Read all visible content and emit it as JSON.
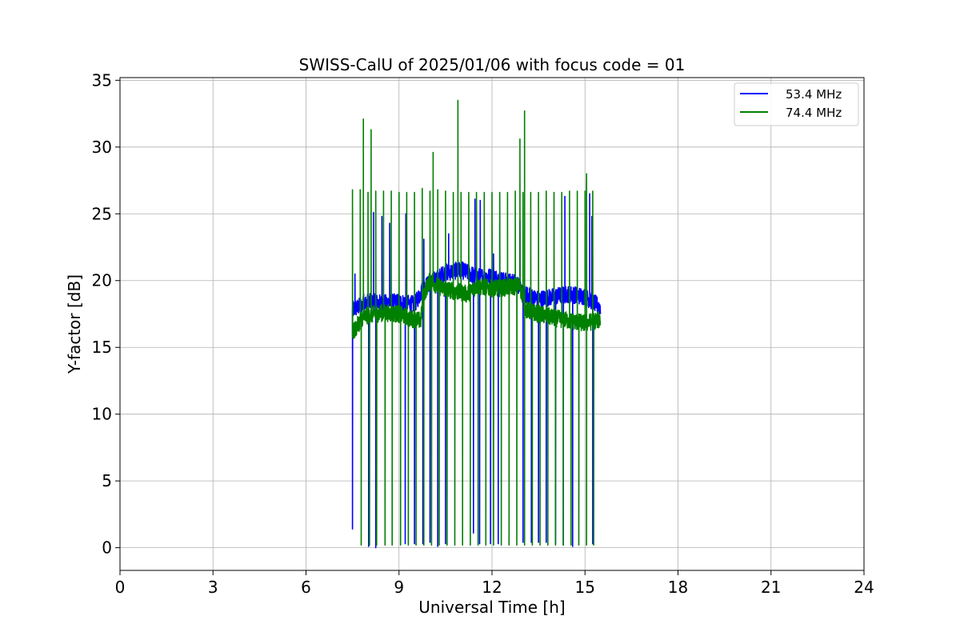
{
  "chart_data": {
    "type": "line",
    "title": "SWISS-CalU of 2025/01/06 with focus code = 01",
    "xlabel": "Universal Time [h]",
    "ylabel": "Y-factor [dB]",
    "xlim": [
      0,
      24
    ],
    "ylim": [
      -1.7,
      35.2
    ],
    "xticks": [
      0,
      3,
      6,
      9,
      12,
      15,
      18,
      21,
      24
    ],
    "yticks": [
      0,
      5,
      10,
      15,
      20,
      25,
      30,
      35
    ],
    "grid": true,
    "legend": "top-right",
    "series": [
      {
        "name": "53.4 MHz",
        "color": "#0000ff",
        "t_start": 7.5,
        "t_end": 15.5,
        "baseline": [
          [
            7.5,
            17.8
          ],
          [
            8.0,
            18.4
          ],
          [
            8.5,
            18.3
          ],
          [
            9.0,
            18.4
          ],
          [
            9.5,
            18.2
          ],
          [
            9.8,
            19.5
          ],
          [
            10.5,
            20.6
          ],
          [
            11.0,
            20.8
          ],
          [
            11.5,
            20.3
          ],
          [
            12.0,
            20.3
          ],
          [
            12.5,
            19.9
          ],
          [
            12.8,
            19.9
          ],
          [
            13.0,
            19.0
          ],
          [
            13.5,
            18.6
          ],
          [
            14.0,
            18.8
          ],
          [
            14.5,
            19.0
          ],
          [
            15.0,
            18.8
          ],
          [
            15.5,
            18.0
          ]
        ],
        "spikes": [
          [
            7.5,
            1.4
          ],
          [
            7.58,
            20.5
          ],
          [
            7.72,
            18.5
          ],
          [
            7.86,
            19.0
          ],
          [
            8.02,
            0.1
          ],
          [
            8.18,
            25.1
          ],
          [
            8.25,
            0.0
          ],
          [
            8.45,
            24.8
          ],
          [
            8.7,
            24.3
          ],
          [
            9.2,
            0.3
          ],
          [
            9.22,
            25.0
          ],
          [
            9.5,
            0.3
          ],
          [
            9.77,
            0.3
          ],
          [
            9.8,
            23.1
          ],
          [
            10.0,
            0.4
          ],
          [
            10.25,
            0.1
          ],
          [
            10.5,
            0.3
          ],
          [
            10.6,
            23.5
          ],
          [
            10.9,
            21.5
          ],
          [
            11.4,
            1.1
          ],
          [
            11.45,
            26.1
          ],
          [
            11.6,
            0.3
          ],
          [
            11.62,
            26.0
          ],
          [
            11.75,
            21.7
          ],
          [
            11.95,
            0.3
          ],
          [
            12.05,
            22.0
          ],
          [
            12.2,
            0.3
          ],
          [
            12.25,
            24.3
          ],
          [
            12.9,
            24.5
          ],
          [
            13.0,
            0.4
          ],
          [
            13.27,
            0.4
          ],
          [
            13.5,
            0.4
          ],
          [
            13.75,
            0.4
          ],
          [
            14.05,
            0.3
          ],
          [
            14.3,
            0.2
          ],
          [
            14.35,
            26.3
          ],
          [
            14.6,
            0.1
          ],
          [
            15.05,
            27.3
          ],
          [
            15.15,
            26.5
          ],
          [
            15.22,
            24.8
          ],
          [
            15.25,
            0.3
          ]
        ]
      },
      {
        "name": "74.4 MHz",
        "color": "#008000",
        "t_start": 7.5,
        "t_end": 15.5,
        "baseline": [
          [
            7.5,
            16.0
          ],
          [
            7.8,
            17.2
          ],
          [
            8.0,
            17.4
          ],
          [
            8.5,
            17.6
          ],
          [
            9.0,
            17.5
          ],
          [
            9.3,
            17.2
          ],
          [
            9.7,
            17.0
          ],
          [
            9.8,
            19.0
          ],
          [
            10.0,
            20.0
          ],
          [
            10.3,
            19.5
          ],
          [
            10.8,
            19.2
          ],
          [
            11.2,
            19.0
          ],
          [
            11.5,
            19.6
          ],
          [
            12.0,
            19.4
          ],
          [
            12.5,
            19.5
          ],
          [
            12.9,
            19.6
          ],
          [
            13.1,
            17.8
          ],
          [
            13.5,
            17.5
          ],
          [
            14.0,
            17.2
          ],
          [
            14.5,
            17.0
          ],
          [
            15.0,
            16.8
          ],
          [
            15.5,
            17.1
          ]
        ],
        "spikes": [
          [
            7.5,
            26.8
          ],
          [
            7.75,
            26.8
          ],
          [
            7.85,
            32.1
          ],
          [
            8.0,
            26.6
          ],
          [
            8.1,
            31.3
          ],
          [
            8.25,
            26.7
          ],
          [
            8.5,
            26.7
          ],
          [
            8.75,
            26.7
          ],
          [
            9.0,
            26.6
          ],
          [
            9.25,
            26.6
          ],
          [
            9.5,
            26.6
          ],
          [
            9.75,
            26.9
          ],
          [
            10.0,
            26.7
          ],
          [
            10.1,
            29.6
          ],
          [
            10.25,
            26.8
          ],
          [
            10.5,
            26.7
          ],
          [
            10.75,
            26.6
          ],
          [
            10.9,
            33.5
          ],
          [
            11.0,
            26.6
          ],
          [
            11.25,
            26.6
          ],
          [
            11.5,
            26.6
          ],
          [
            11.75,
            26.6
          ],
          [
            12.0,
            26.6
          ],
          [
            12.25,
            26.6
          ],
          [
            12.5,
            26.6
          ],
          [
            12.75,
            26.7
          ],
          [
            12.9,
            30.6
          ],
          [
            13.0,
            26.6
          ],
          [
            13.05,
            32.7
          ],
          [
            13.25,
            26.6
          ],
          [
            13.5,
            26.6
          ],
          [
            13.75,
            26.7
          ],
          [
            14.0,
            26.6
          ],
          [
            14.25,
            26.6
          ],
          [
            14.5,
            26.7
          ],
          [
            14.75,
            26.7
          ],
          [
            15.0,
            26.7
          ],
          [
            15.05,
            28.0
          ],
          [
            15.25,
            26.7
          ]
        ],
        "dips": [
          7.78,
          8.05,
          8.28,
          8.55,
          8.78,
          9.05,
          9.3,
          9.55,
          9.8,
          10.05,
          10.3,
          10.55,
          10.8,
          11.05,
          11.3,
          11.55,
          11.8,
          12.05,
          12.3,
          12.55,
          12.8,
          13.05,
          13.3,
          13.55,
          13.8,
          14.05,
          14.3,
          14.55,
          14.8,
          15.05,
          15.28
        ],
        "dip_value": 0.2
      }
    ]
  }
}
